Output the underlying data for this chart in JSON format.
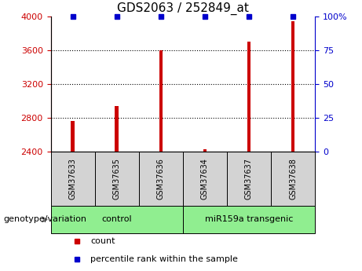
{
  "title": "GDS2063 / 252849_at",
  "samples": [
    "GSM37633",
    "GSM37635",
    "GSM37636",
    "GSM37634",
    "GSM37637",
    "GSM37638"
  ],
  "counts": [
    2760,
    2940,
    3600,
    2430,
    3700,
    3940
  ],
  "percentile_ranks": [
    100,
    100,
    100,
    100,
    100,
    100
  ],
  "ylim_left": [
    2400,
    4000
  ],
  "ylim_right": [
    0,
    100
  ],
  "yticks_left": [
    2400,
    2800,
    3200,
    3600,
    4000
  ],
  "yticks_right": [
    0,
    25,
    50,
    75,
    100
  ],
  "bar_color": "#cc0000",
  "percentile_color": "#0000cc",
  "bar_width": 0.08,
  "groups": [
    {
      "label": "control",
      "indices": [
        0,
        1,
        2
      ],
      "color": "#90ee90"
    },
    {
      "label": "miR159a transgenic",
      "indices": [
        3,
        4,
        5
      ],
      "color": "#90ee90"
    }
  ],
  "sample_box_color": "#d3d3d3",
  "group_label": "genotype/variation",
  "legend_count_label": "count",
  "legend_percentile_label": "percentile rank within the sample",
  "title_fontsize": 11,
  "tick_fontsize": 8,
  "sample_fontsize": 7,
  "group_fontsize": 8,
  "legend_fontsize": 8
}
